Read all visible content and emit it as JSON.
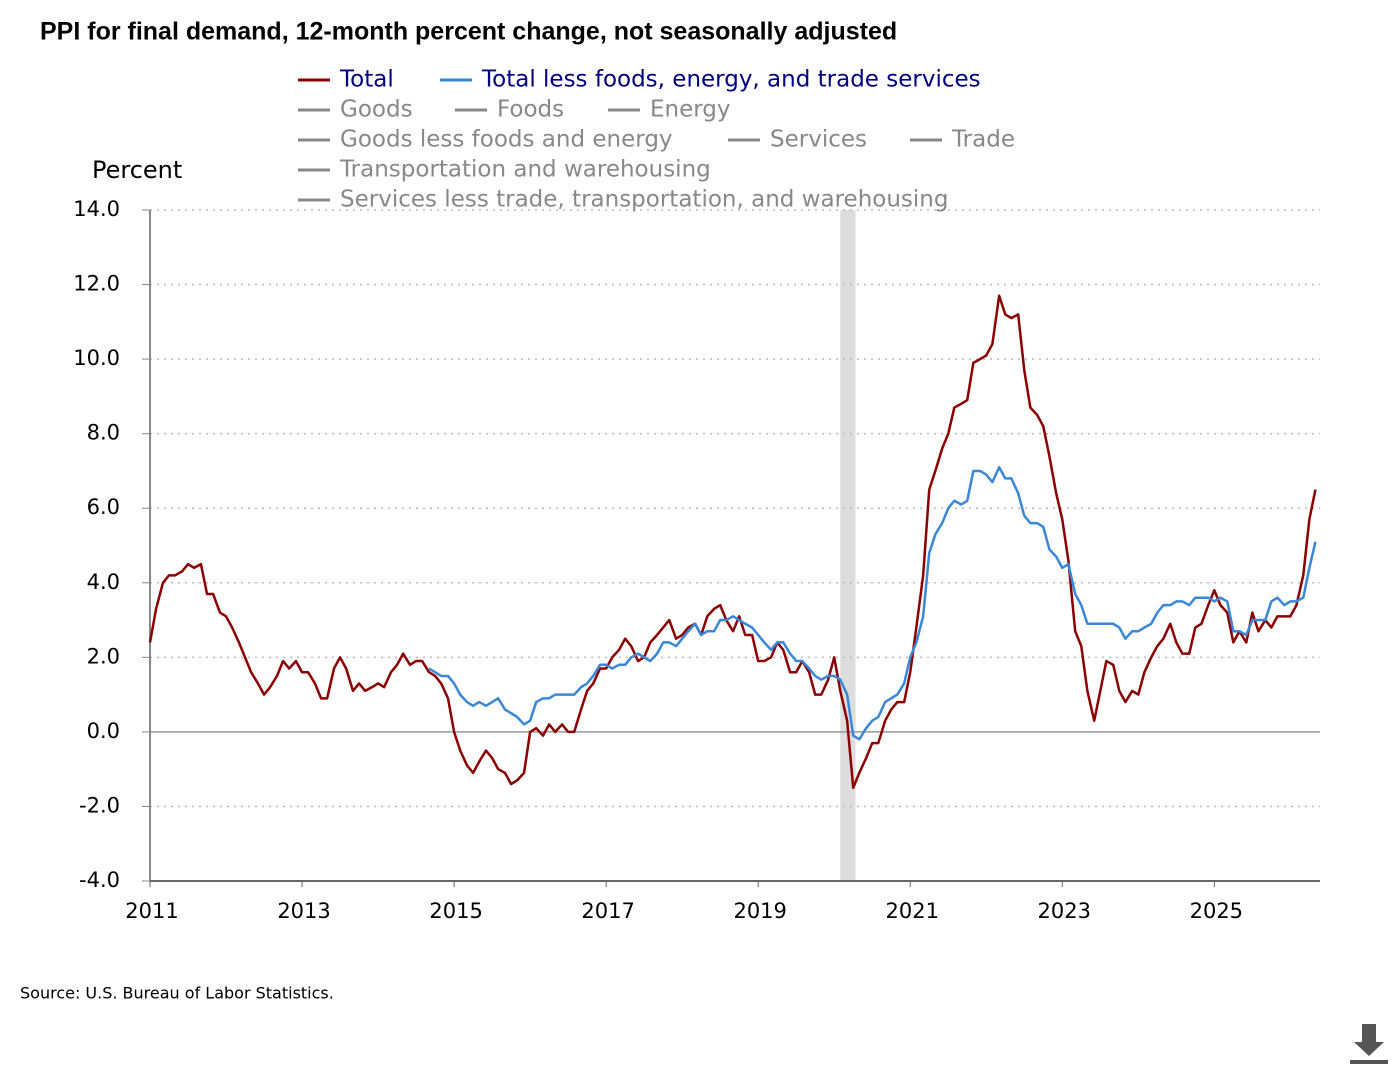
{
  "chart_data": {
    "type": "line",
    "title": "PPI for final demand, 12-month percent change, not seasonally adjusted",
    "y_label": "Percent",
    "source": "Source: U.S. Bureau of Labor Statistics.",
    "xlim": [
      2011,
      2026.39
    ],
    "xticks": [
      2011,
      2013,
      2015,
      2017,
      2019,
      2021,
      2023,
      2025
    ],
    "ylim": [
      -4,
      14
    ],
    "yticks": [
      {
        "value": -4,
        "label": "-4.0"
      },
      {
        "value": -2,
        "label": "-2.0"
      },
      {
        "value": 0,
        "label": "0.0"
      },
      {
        "value": 2,
        "label": "2.0"
      },
      {
        "value": 4,
        "label": "4.0"
      },
      {
        "value": 6,
        "label": "6.0"
      },
      {
        "value": 8,
        "label": "8.0"
      },
      {
        "value": 10,
        "label": "10.0"
      },
      {
        "value": 12,
        "label": "12.0"
      },
      {
        "value": 14,
        "label": "14.0"
      }
    ],
    "grid": true,
    "shaded_regions": [
      {
        "start": 2020.08,
        "end": 2020.28,
        "color": "#dddddd"
      }
    ],
    "x": [
      2011.0,
      2011.08,
      2011.17,
      2011.25,
      2011.33,
      2011.42,
      2011.5,
      2011.58,
      2011.67,
      2011.75,
      2011.83,
      2011.92,
      2012.0,
      2012.08,
      2012.17,
      2012.25,
      2012.33,
      2012.42,
      2012.5,
      2012.58,
      2012.67,
      2012.75,
      2012.83,
      2012.92,
      2013.0,
      2013.08,
      2013.17,
      2013.25,
      2013.33,
      2013.42,
      2013.5,
      2013.58,
      2013.67,
      2013.75,
      2013.83,
      2013.92,
      2014.0,
      2014.08,
      2014.17,
      2014.25,
      2014.33,
      2014.42,
      2014.5,
      2014.58,
      2014.67,
      2014.75,
      2014.83,
      2014.92,
      2015.0,
      2015.08,
      2015.17,
      2015.25,
      2015.33,
      2015.42,
      2015.5,
      2015.58,
      2015.67,
      2015.75,
      2015.83,
      2015.92,
      2016.0,
      2016.08,
      2016.17,
      2016.25,
      2016.33,
      2016.42,
      2016.5,
      2016.58,
      2016.67,
      2016.75,
      2016.83,
      2016.92,
      2017.0,
      2017.08,
      2017.17,
      2017.25,
      2017.33,
      2017.42,
      2017.5,
      2017.58,
      2017.67,
      2017.75,
      2017.83,
      2017.92,
      2018.0,
      2018.08,
      2018.17,
      2018.25,
      2018.33,
      2018.42,
      2018.5,
      2018.58,
      2018.67,
      2018.75,
      2018.83,
      2018.92,
      2019.0,
      2019.08,
      2019.17,
      2019.25,
      2019.33,
      2019.42,
      2019.5,
      2019.58,
      2019.67,
      2019.75,
      2019.83,
      2019.92,
      2020.0,
      2020.08,
      2020.17,
      2020.25,
      2020.33,
      2020.42,
      2020.5,
      2020.58,
      2020.67,
      2020.75,
      2020.83,
      2020.92,
      2021.0,
      2021.08,
      2021.17,
      2021.25,
      2021.33,
      2021.42,
      2021.5,
      2021.58,
      2021.67,
      2021.75,
      2021.83,
      2021.92,
      2022.0,
      2022.08,
      2022.17,
      2022.25,
      2022.33,
      2022.42,
      2022.5,
      2022.58,
      2022.67,
      2022.75,
      2022.83,
      2022.92,
      2023.0,
      2023.08,
      2023.17,
      2023.25,
      2023.33,
      2023.42,
      2023.5,
      2023.58,
      2023.67,
      2023.75,
      2023.83,
      2023.92,
      2024.0,
      2024.08,
      2024.17,
      2024.25,
      2024.33,
      2024.42,
      2024.5,
      2024.58,
      2024.67,
      2024.75,
      2024.83,
      2024.92,
      2025.0,
      2025.08,
      2025.17,
      2025.25,
      2025.33,
      2025.42,
      2025.5,
      2025.58,
      2025.67,
      2025.75,
      2025.83,
      2025.92,
      2026.0,
      2026.08,
      2026.17,
      2026.25,
      2026.33
    ],
    "series": [
      {
        "name": "Total",
        "color": "#8b0000",
        "label_color": "#000080",
        "values": [
          2.4,
          3.3,
          4.0,
          4.2,
          4.2,
          4.3,
          4.5,
          4.4,
          4.5,
          3.7,
          3.7,
          3.2,
          3.1,
          2.8,
          2.4,
          2.0,
          1.6,
          1.3,
          1.0,
          1.2,
          1.5,
          1.9,
          1.7,
          1.9,
          1.6,
          1.6,
          1.3,
          0.9,
          0.9,
          1.7,
          2.0,
          1.7,
          1.1,
          1.3,
          1.1,
          1.2,
          1.3,
          1.2,
          1.6,
          1.8,
          2.1,
          1.8,
          1.9,
          1.9,
          1.6,
          1.5,
          1.3,
          0.9,
          0.0,
          -0.5,
          -0.9,
          -1.1,
          -0.8,
          -0.5,
          -0.7,
          -1.0,
          -1.1,
          -1.4,
          -1.3,
          -1.1,
          0.0,
          0.1,
          -0.1,
          0.2,
          0.0,
          0.2,
          0.0,
          0.0,
          0.6,
          1.1,
          1.3,
          1.7,
          1.7,
          2.0,
          2.2,
          2.5,
          2.3,
          1.9,
          2.0,
          2.4,
          2.6,
          2.8,
          3.0,
          2.5,
          2.6,
          2.8,
          2.9,
          2.6,
          3.1,
          3.3,
          3.4,
          3.0,
          2.7,
          3.1,
          2.6,
          2.6,
          1.9,
          1.9,
          2.0,
          2.4,
          2.2,
          1.6,
          1.6,
          1.9,
          1.6,
          1.0,
          1.0,
          1.4,
          2.0,
          1.1,
          0.3,
          -1.5,
          -1.1,
          -0.7,
          -0.3,
          -0.3,
          0.3,
          0.6,
          0.8,
          0.8,
          1.6,
          2.8,
          4.2,
          6.5,
          7.0,
          7.6,
          8.0,
          8.7,
          8.8,
          8.9,
          9.9,
          10.0,
          10.1,
          10.4,
          11.7,
          11.2,
          11.1,
          11.2,
          9.7,
          8.7,
          8.5,
          8.2,
          7.4,
          6.4,
          5.7,
          4.6,
          2.7,
          2.3,
          1.1,
          0.3,
          1.1,
          1.9,
          1.8,
          1.1,
          0.8,
          1.1,
          1.0,
          1.6,
          2.0,
          2.3,
          2.5,
          2.9,
          2.4,
          2.1,
          2.1,
          2.8,
          2.9,
          3.4,
          3.8,
          3.4,
          3.2,
          2.4,
          2.7,
          2.4,
          3.2,
          2.7,
          3.0,
          2.8,
          3.1,
          3.1,
          3.1,
          3.4,
          4.2,
          5.7,
          6.5
        ]
      },
      {
        "name": "Total less foods, energy, and trade services",
        "color": "#3a87d6",
        "label_color": "#000080",
        "values": [
          null,
          null,
          null,
          null,
          null,
          null,
          null,
          null,
          null,
          null,
          null,
          null,
          null,
          null,
          null,
          null,
          null,
          null,
          null,
          null,
          null,
          null,
          null,
          null,
          null,
          null,
          null,
          null,
          null,
          null,
          null,
          null,
          null,
          null,
          null,
          null,
          null,
          null,
          null,
          null,
          null,
          null,
          null,
          null,
          1.7,
          1.6,
          1.5,
          1.5,
          1.3,
          1.0,
          0.8,
          0.7,
          0.8,
          0.7,
          0.8,
          0.9,
          0.6,
          0.5,
          0.4,
          0.2,
          0.3,
          0.8,
          0.9,
          0.9,
          1.0,
          1.0,
          1.0,
          1.0,
          1.2,
          1.3,
          1.5,
          1.8,
          1.8,
          1.7,
          1.8,
          1.8,
          2.0,
          2.1,
          2.0,
          1.9,
          2.1,
          2.4,
          2.4,
          2.3,
          2.5,
          2.7,
          2.9,
          2.6,
          2.7,
          2.7,
          3.0,
          3.0,
          3.1,
          3.0,
          2.9,
          2.8,
          2.6,
          2.4,
          2.2,
          2.4,
          2.4,
          2.1,
          1.9,
          1.9,
          1.7,
          1.5,
          1.4,
          1.5,
          1.5,
          1.4,
          1.0,
          -0.1,
          -0.2,
          0.1,
          0.3,
          0.4,
          0.8,
          0.9,
          1.0,
          1.3,
          2.0,
          2.4,
          3.1,
          4.8,
          5.3,
          5.6,
          6.0,
          6.2,
          6.1,
          6.2,
          7.0,
          7.0,
          6.9,
          6.7,
          7.1,
          6.8,
          6.8,
          6.4,
          5.8,
          5.6,
          5.6,
          5.5,
          4.9,
          4.7,
          4.4,
          4.5,
          3.7,
          3.4,
          2.9,
          2.9,
          2.9,
          2.9,
          2.9,
          2.8,
          2.5,
          2.7,
          2.7,
          2.8,
          2.9,
          3.2,
          3.4,
          3.4,
          3.5,
          3.5,
          3.4,
          3.6,
          3.6,
          3.6,
          3.5,
          3.6,
          3.5,
          2.7,
          2.7,
          2.6,
          3.0,
          3.0,
          3.0,
          3.5,
          3.6,
          3.4,
          3.5,
          3.5,
          3.6,
          4.4,
          5.1
        ]
      }
    ],
    "inactive_series": [
      {
        "name": "Goods",
        "color": "#888888"
      },
      {
        "name": "Foods",
        "color": "#888888"
      },
      {
        "name": "Energy",
        "color": "#888888"
      },
      {
        "name": "Goods less foods and energy",
        "color": "#888888"
      },
      {
        "name": "Services",
        "color": "#888888"
      },
      {
        "name": "Trade",
        "color": "#888888"
      },
      {
        "name": "Transportation and warehousing",
        "color": "#888888"
      },
      {
        "name": "Services less trade, transportation, and warehousing",
        "color": "#888888"
      }
    ]
  }
}
